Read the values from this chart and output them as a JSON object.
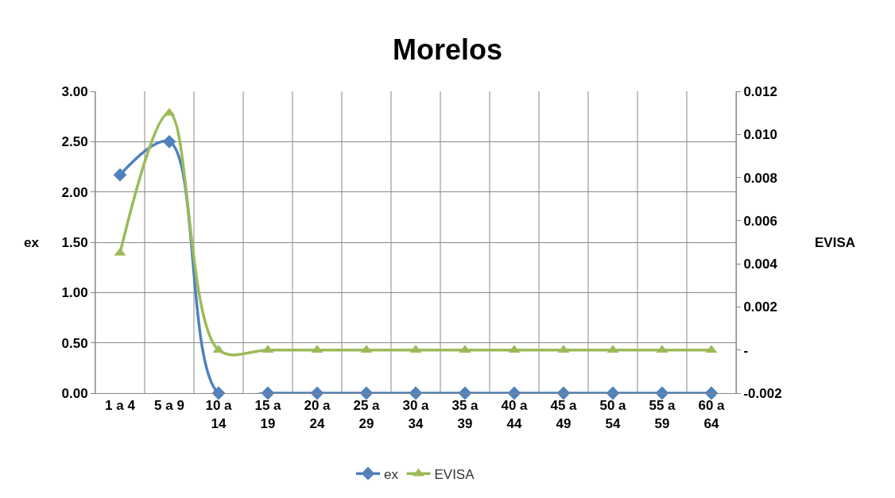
{
  "chart_data": {
    "type": "line",
    "title": "Morelos",
    "ylabel": "ex",
    "y2label": "EVISA",
    "categories": [
      "1 a 4",
      "5 a 9",
      "10 a 14",
      "15 a 19",
      "20 a 24",
      "25 a 29",
      "30 a 34",
      "35 a 39",
      "40 a 44",
      "45 a 49",
      "50 a 54",
      "55 a 59",
      "60 a 64"
    ],
    "series": [
      {
        "name": "ex",
        "color": "#4f81bd",
        "marker": "diamond",
        "values": [
          2.17,
          2.5,
          0,
          0,
          0,
          0,
          0,
          0,
          0,
          0,
          0,
          0,
          0
        ]
      },
      {
        "name": "EVISA",
        "color": "#9bbb59",
        "marker": "triangle",
        "axis": "y2",
        "values": [
          0.0045,
          0.011,
          0,
          0,
          0,
          0,
          0,
          0,
          0,
          0,
          0,
          0,
          0
        ]
      }
    ],
    "ylim": [
      0,
      3
    ],
    "yticks": [
      {
        "value": 0,
        "label": "0.00"
      },
      {
        "value": 0.5,
        "label": "0.50"
      },
      {
        "value": 1,
        "label": "1.00"
      },
      {
        "value": 1.5,
        "label": "1.50"
      },
      {
        "value": 2,
        "label": "2.00"
      },
      {
        "value": 2.5,
        "label": "2.50"
      },
      {
        "value": 3,
        "label": "3.00"
      }
    ],
    "y2lim": [
      -0.002,
      0.012
    ],
    "y2ticks": [
      -0.002,
      {
        "value": 0,
        "label": "-"
      },
      0.002,
      0.004,
      0.006,
      0.008,
      {
        "value": 0.01,
        "label": "0.010"
      },
      0.012
    ],
    "grid": true,
    "legend": "bottom",
    "line_style": "solid"
  }
}
